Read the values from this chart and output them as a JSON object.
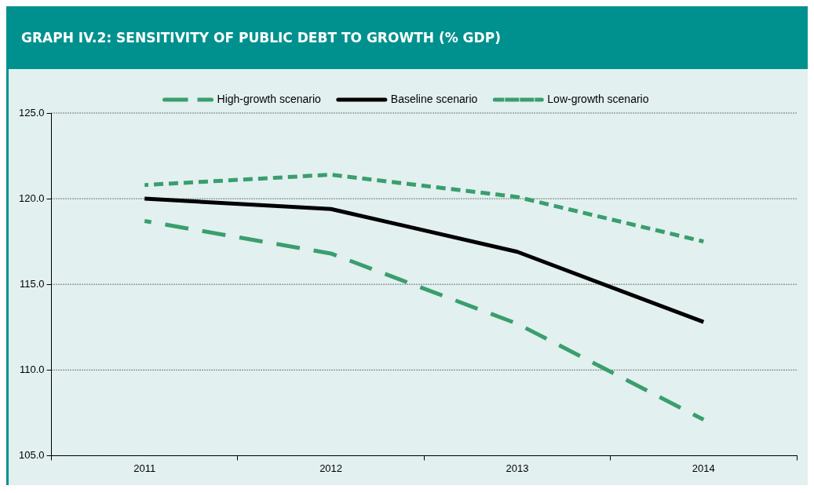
{
  "chart_data": {
    "type": "line",
    "title": "GRAPH IV.2: SENSITIVITY OF PUBLIC DEBT TO GROWTH (% GDP)",
    "categories": [
      "2011",
      "2012",
      "2013",
      "2014"
    ],
    "series": [
      {
        "name": "High-growth scenario",
        "color": "#3a9e6e",
        "line_style": "dashed",
        "values": [
          118.7,
          116.8,
          112.7,
          107.1
        ]
      },
      {
        "name": "Baseline scenario",
        "color": "#000000",
        "line_style": "solid",
        "values": [
          120.0,
          119.4,
          116.9,
          112.8
        ]
      },
      {
        "name": "Low-growth scenario",
        "color": "#3a9e6e",
        "line_style": "dashed",
        "values": [
          120.8,
          121.4,
          120.1,
          117.5
        ]
      }
    ],
    "ylim": [
      105,
      125
    ],
    "yticks": [
      {
        "value": 105,
        "label": "105.0"
      },
      {
        "value": 110,
        "label": "110.0"
      },
      {
        "value": 115,
        "label": "115.0"
      },
      {
        "value": 120,
        "label": "120.0"
      },
      {
        "value": 125,
        "label": "125.0"
      }
    ],
    "grid": "y",
    "legend": "top",
    "marker": "none"
  }
}
